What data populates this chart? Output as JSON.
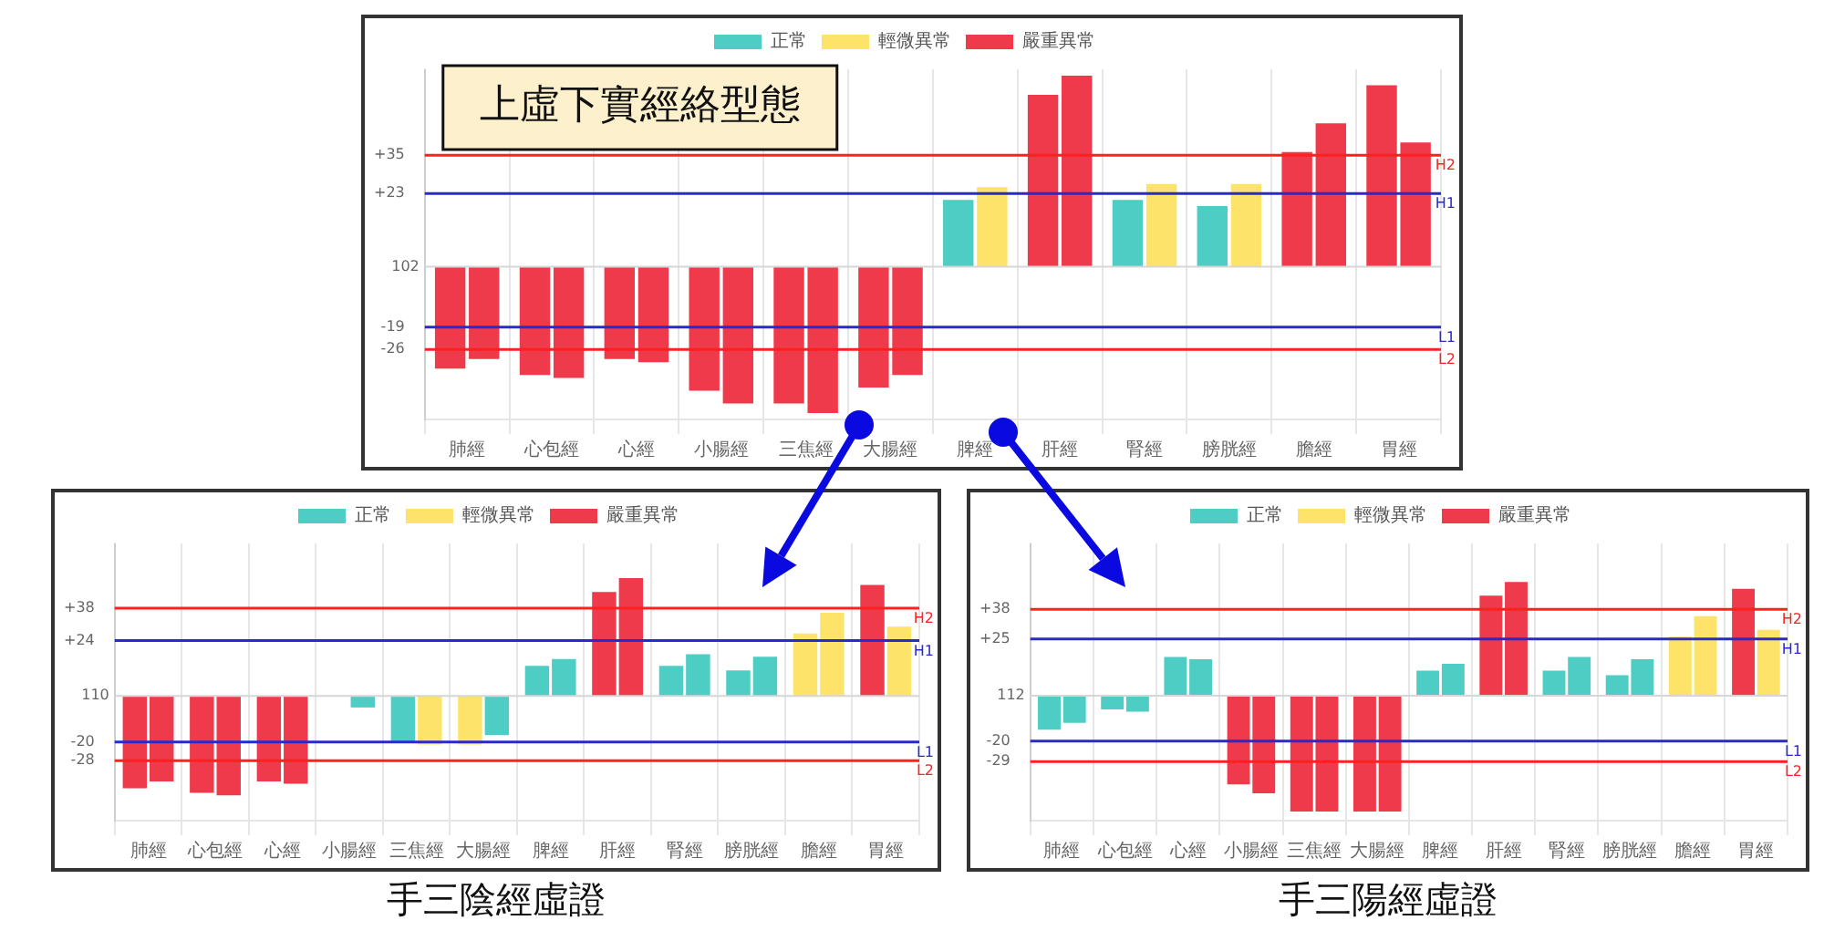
{
  "chart_data": [
    {
      "type": "bar",
      "title": "上虛下實經絡型態",
      "categories": [
        "肺經",
        "心包經",
        "心經",
        "小腸經",
        "三焦經",
        "大腸經",
        "脾經",
        "肝經",
        "腎經",
        "膀胱經",
        "膽經",
        "胃經"
      ],
      "series": [
        {
          "name": "正常",
          "color": "#4ecdc4",
          "values": [
            null,
            null,
            null,
            null,
            null,
            null,
            21,
            null,
            21,
            19,
            null,
            null
          ]
        },
        {
          "name": "輕微異常",
          "color": "#fde36a",
          "values": [
            null,
            null,
            null,
            null,
            null,
            null,
            null,
            null,
            null,
            null,
            null,
            null
          ]
        },
        {
          "name": "嚴重異常",
          "color": "#ee3a4a",
          "values": [
            -32,
            -34,
            -29,
            -39,
            -43,
            -38,
            null,
            54,
            null,
            null,
            36,
            57
          ]
        },
        {
          "color": "#4ecdc4",
          "values": [
            null,
            null,
            null,
            null,
            null,
            null,
            null,
            null,
            null,
            null,
            null,
            null
          ]
        },
        {
          "color": "#fde36a",
          "values": [
            null,
            null,
            null,
            null,
            null,
            null,
            25,
            null,
            26,
            26,
            null,
            null
          ]
        },
        {
          "color": "#ee3a4a",
          "values": [
            -29,
            -35,
            -30,
            -43,
            -46,
            -34,
            null,
            60,
            null,
            null,
            45,
            39
          ]
        }
      ],
      "ylim": [
        -48,
        62
      ],
      "yticks": [
        {
          "value": 35,
          "label": "+35"
        },
        {
          "value": 23,
          "label": "+23"
        },
        -19,
        -26
      ],
      "annotations": [
        "102"
      ],
      "ref_lines": [
        {
          "axis": "y",
          "value": 35,
          "label": "H2",
          "color": "#ff2020"
        },
        {
          "axis": "y",
          "value": 23,
          "label": "H1",
          "color": "#2a2acc"
        },
        {
          "axis": "y",
          "value": -19,
          "label": "L1",
          "color": "#2a2acc"
        },
        {
          "axis": "y",
          "value": -26,
          "label": "L2",
          "color": "#ff2020"
        }
      ],
      "grid": "x",
      "legend": "top"
    },
    {
      "type": "bar",
      "title": "手三陰經虛證",
      "categories": [
        "肺經",
        "心包經",
        "心經",
        "小腸經",
        "三焦經",
        "大腸經",
        "脾經",
        "肝經",
        "腎經",
        "膀胱經",
        "膽經",
        "胃經"
      ],
      "series": [
        {
          "name": "正常",
          "color": "#4ecdc4",
          "values": [
            null,
            null,
            null,
            0,
            -20,
            null,
            13,
            null,
            13,
            11,
            null,
            null
          ]
        },
        {
          "name": "輕微異常",
          "color": "#fde36a",
          "values": [
            null,
            null,
            null,
            null,
            null,
            -21,
            null,
            null,
            null,
            null,
            27,
            null
          ]
        },
        {
          "name": "嚴重異常",
          "color": "#ee3a4a",
          "values": [
            -40,
            -42,
            -37,
            null,
            null,
            null,
            null,
            45,
            null,
            null,
            null,
            48
          ]
        },
        {
          "color": "#4ecdc4",
          "values": [
            null,
            null,
            null,
            -5,
            null,
            -17,
            16,
            null,
            18,
            17,
            null,
            null
          ]
        },
        {
          "color": "#fde36a",
          "values": [
            null,
            null,
            null,
            null,
            -21,
            null,
            null,
            null,
            null,
            null,
            36,
            30
          ]
        },
        {
          "color": "#ee3a4a",
          "values": [
            -37,
            -43,
            -38,
            null,
            null,
            null,
            null,
            51,
            null,
            null,
            null,
            null
          ]
        }
      ],
      "ylim": [
        -54,
        66
      ],
      "yticks": [
        {
          "value": 38,
          "label": "+38"
        },
        {
          "value": 24,
          "label": "+24"
        },
        -20,
        -28
      ],
      "annotations": [
        "110"
      ],
      "ref_lines": [
        {
          "axis": "y",
          "value": 38,
          "label": "H2",
          "color": "#ff2020"
        },
        {
          "axis": "y",
          "value": 24,
          "label": "H1",
          "color": "#2a2acc"
        },
        {
          "axis": "y",
          "value": -20,
          "label": "L1",
          "color": "#2a2acc"
        },
        {
          "axis": "y",
          "value": -28,
          "label": "L2",
          "color": "#ff2020"
        }
      ],
      "grid": "x",
      "legend": "top"
    },
    {
      "type": "bar",
      "title": "手三陽經虛證",
      "categories": [
        "肺經",
        "心包經",
        "心經",
        "小腸經",
        "三焦經",
        "大腸經",
        "脾經",
        "肝經",
        "腎經",
        "膀胱經",
        "膽經",
        "胃經"
      ],
      "series": [
        {
          "name": "正常",
          "color": "#4ecdc4",
          "values": [
            -15,
            -6,
            17,
            null,
            null,
            null,
            11,
            null,
            11,
            9,
            null,
            null
          ]
        },
        {
          "name": "輕微異常",
          "color": "#fde36a",
          "values": [
            null,
            null,
            null,
            null,
            null,
            null,
            null,
            null,
            null,
            null,
            26,
            null
          ]
        },
        {
          "name": "嚴重異常",
          "color": "#ee3a4a",
          "values": [
            null,
            null,
            null,
            -39,
            -51,
            -51,
            null,
            44,
            null,
            null,
            null,
            47
          ]
        },
        {
          "color": "#4ecdc4",
          "values": [
            -12,
            -7,
            16,
            null,
            null,
            null,
            14,
            null,
            17,
            16,
            null,
            null
          ]
        },
        {
          "color": "#fde36a",
          "values": [
            null,
            null,
            null,
            null,
            null,
            null,
            null,
            null,
            null,
            null,
            35,
            29
          ]
        },
        {
          "color": "#ee3a4a",
          "values": [
            null,
            null,
            null,
            -43,
            -51,
            -51,
            null,
            50,
            null,
            null,
            null,
            null
          ]
        }
      ],
      "ylim": [
        -55,
        67
      ],
      "yticks": [
        {
          "value": 38,
          "label": "+38"
        },
        {
          "value": 25,
          "label": "+25"
        },
        -20,
        -29
      ],
      "annotations": [
        "112"
      ],
      "ref_lines": [
        {
          "axis": "y",
          "value": 38,
          "label": "H2",
          "color": "#ff2020"
        },
        {
          "axis": "y",
          "value": 25,
          "label": "H1",
          "color": "#2a2acc"
        },
        {
          "axis": "y",
          "value": -20,
          "label": "L1",
          "color": "#2a2acc"
        },
        {
          "axis": "y",
          "value": -29,
          "label": "L2",
          "color": "#ff2020"
        }
      ],
      "grid": "x",
      "legend": "top"
    }
  ]
}
